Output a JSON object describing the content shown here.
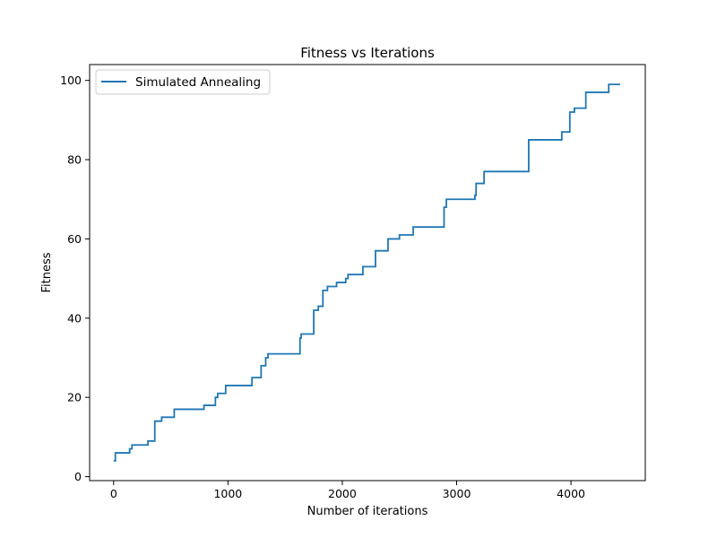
{
  "chart_data": {
    "type": "line",
    "title": "Fitness vs Iterations",
    "xlabel": "Number of iterations",
    "ylabel": "Fitness",
    "xlim": [
      -210,
      4650
    ],
    "ylim": [
      -1,
      104
    ],
    "x_ticks": [
      0,
      1000,
      2000,
      3000,
      4000
    ],
    "y_ticks": [
      0,
      20,
      40,
      60,
      80,
      100
    ],
    "grid": false,
    "legend_position": "top-left",
    "step_style": "post",
    "series": [
      {
        "name": "Simulated Annealing",
        "color": "#1f77b4",
        "x": [
          0,
          15,
          140,
          160,
          300,
          360,
          420,
          530,
          790,
          890,
          910,
          980,
          1210,
          1290,
          1330,
          1350,
          1370,
          1630,
          1640,
          1650,
          1750,
          1790,
          1830,
          1870,
          1950,
          2030,
          2050,
          2180,
          2290,
          2400,
          2500,
          2560,
          2620,
          2890,
          2900,
          2910,
          3160,
          3170,
          3220,
          3240,
          3550,
          3630,
          3920,
          3950,
          3990,
          4030,
          4130,
          4330,
          4400,
          4430
        ],
        "y": [
          4,
          6,
          7,
          8,
          9,
          14,
          15,
          17,
          18,
          20,
          21,
          23,
          25,
          28,
          30,
          31,
          31,
          35,
          36,
          36,
          42,
          43,
          47,
          48,
          49,
          50,
          51,
          53,
          57,
          60,
          61,
          61,
          63,
          68,
          68,
          70,
          71,
          74,
          74,
          77,
          77,
          85,
          87,
          87,
          92,
          93,
          97,
          99,
          99,
          99
        ]
      }
    ]
  }
}
